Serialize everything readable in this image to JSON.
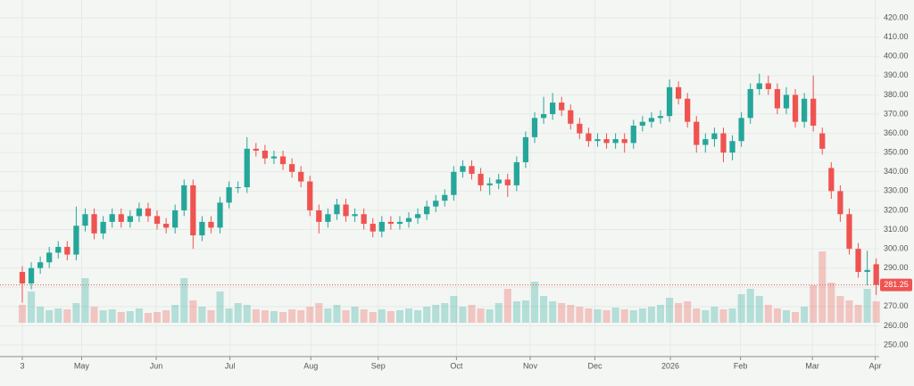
{
  "chart_data": {
    "type": "candlestick",
    "up_color": "#26a69a",
    "down_color": "#ef5350",
    "grid": true,
    "xlim": [
      -2.48,
      95.33
    ],
    "xticks": [
      {
        "value": 0,
        "label": "3"
      },
      {
        "value": 6.6,
        "label": "May"
      },
      {
        "value": 14.9,
        "label": "Jun"
      },
      {
        "value": 23.1,
        "label": "Jul"
      },
      {
        "value": 32.1,
        "label": "Aug"
      },
      {
        "value": 39.6,
        "label": "Sep"
      },
      {
        "value": 48.3,
        "label": "Oct"
      },
      {
        "value": 56.5,
        "label": "Nov"
      },
      {
        "value": 63.7,
        "label": "Dec"
      },
      {
        "value": 72.1,
        "label": "2026"
      },
      {
        "value": 79.9,
        "label": "Feb"
      },
      {
        "value": 87.9,
        "label": "Mar"
      },
      {
        "value": 94.9,
        "label": "Apr"
      }
    ],
    "ylim": [
      244,
      429.3
    ],
    "yticks": [
      {
        "value": 250,
        "label": "250.00"
      },
      {
        "value": 260,
        "label": "260.00"
      },
      {
        "value": 270,
        "label": "270.00"
      },
      {
        "value": 280,
        "label": "280.00"
      },
      {
        "value": 290,
        "label": "290.00"
      },
      {
        "value": 300,
        "label": "300.00"
      },
      {
        "value": 310,
        "label": "310.00"
      },
      {
        "value": 320,
        "label": "320.00"
      },
      {
        "value": 330,
        "label": "330.00"
      },
      {
        "value": 340,
        "label": "340.00"
      },
      {
        "value": 350,
        "label": "350.00"
      },
      {
        "value": 360,
        "label": "360.00"
      },
      {
        "value": 370,
        "label": "370.00"
      },
      {
        "value": 380,
        "label": "380.00"
      },
      {
        "value": 390,
        "label": "390.00"
      },
      {
        "value": 400,
        "label": "400.00"
      },
      {
        "value": 410,
        "label": "410.00"
      },
      {
        "value": 420,
        "label": "420.00"
      }
    ],
    "open": [
      288,
      282,
      290,
      293,
      298,
      301,
      297,
      312,
      318,
      308,
      314,
      318,
      314,
      317,
      321,
      317,
      313,
      311,
      320,
      333,
      307,
      314,
      311,
      324,
      332,
      332,
      352,
      351,
      347,
      348,
      344,
      340,
      335,
      320,
      314,
      318,
      323,
      317,
      318,
      313,
      309,
      314,
      313,
      314,
      316,
      318,
      322,
      325,
      328,
      340,
      343,
      339,
      333,
      334,
      336,
      333,
      345,
      358,
      368,
      370,
      376,
      372,
      365,
      360,
      356,
      357,
      355,
      357,
      355,
      364,
      366,
      368,
      369,
      384,
      378,
      366,
      354,
      357,
      360,
      350,
      356,
      368,
      383,
      386,
      383,
      373,
      380,
      366,
      378,
      360,
      342,
      330,
      318,
      300,
      288,
      292
    ],
    "high": [
      291,
      293,
      296,
      301,
      304,
      304,
      322,
      321,
      321,
      317,
      321,
      321,
      320,
      324,
      324,
      320,
      316,
      323,
      336,
      336,
      317,
      317,
      327,
      335,
      335,
      358,
      355,
      354,
      351,
      351,
      347,
      343,
      338,
      323,
      321,
      326,
      326,
      321,
      321,
      316,
      317,
      317,
      317,
      319,
      321,
      325,
      328,
      331,
      343,
      346,
      346,
      342,
      337,
      339,
      339,
      348,
      361,
      371,
      379,
      381,
      379,
      375,
      368,
      363,
      360,
      360,
      360,
      360,
      367,
      369,
      371,
      372,
      388,
      387,
      381,
      369,
      360,
      363,
      363,
      359,
      371,
      386,
      391,
      390,
      386,
      384,
      383,
      381,
      390,
      363,
      345,
      333,
      321,
      303,
      299,
      295
    ],
    "low": [
      272,
      279,
      287,
      290,
      295,
      294,
      294,
      309,
      305,
      305,
      311,
      311,
      311,
      314,
      314,
      310,
      308,
      308,
      317,
      300,
      304,
      308,
      308,
      321,
      329,
      329,
      348,
      344,
      344,
      341,
      337,
      332,
      317,
      308,
      311,
      315,
      314,
      314,
      310,
      306,
      306,
      310,
      310,
      311,
      313,
      315,
      319,
      322,
      325,
      337,
      336,
      330,
      328,
      331,
      327,
      330,
      342,
      355,
      365,
      367,
      369,
      362,
      357,
      353,
      353,
      352,
      352,
      350,
      352,
      361,
      363,
      365,
      366,
      375,
      363,
      350,
      350,
      353,
      345,
      346,
      353,
      365,
      380,
      380,
      370,
      370,
      363,
      363,
      361,
      349,
      326,
      314,
      297,
      285,
      281,
      276
    ],
    "close": [
      282,
      290,
      293,
      298,
      301,
      297,
      312,
      318,
      308,
      314,
      318,
      314,
      317,
      321,
      317,
      313,
      311,
      320,
      333,
      307,
      314,
      311,
      324,
      332,
      332,
      352,
      351,
      347,
      348,
      344,
      340,
      335,
      320,
      314,
      318,
      323,
      317,
      318,
      313,
      309,
      314,
      313,
      314,
      316,
      318,
      322,
      325,
      328,
      340,
      343,
      339,
      333,
      334,
      336,
      333,
      345,
      358,
      368,
      370,
      376,
      372,
      365,
      360,
      356,
      357,
      355,
      357,
      355,
      364,
      366,
      368,
      369,
      384,
      378,
      366,
      354,
      357,
      360,
      350,
      356,
      368,
      383,
      386,
      383,
      373,
      380,
      366,
      378,
      364,
      352,
      330,
      318,
      300,
      288,
      289,
      281.25
    ],
    "volume": [
      20,
      35,
      18,
      14,
      16,
      15,
      22,
      50,
      18,
      14,
      15,
      12,
      13,
      16,
      11,
      12,
      14,
      20,
      50,
      25,
      18,
      14,
      35,
      16,
      22,
      20,
      15,
      14,
      13,
      12,
      15,
      14,
      18,
      22,
      16,
      20,
      14,
      18,
      15,
      12,
      15,
      13,
      14,
      16,
      14,
      18,
      20,
      22,
      30,
      18,
      20,
      16,
      15,
      22,
      38,
      24,
      25,
      46,
      30,
      24,
      22,
      20,
      18,
      16,
      15,
      14,
      17,
      15,
      14,
      16,
      18,
      20,
      28,
      22,
      24,
      16,
      14,
      18,
      15,
      16,
      32,
      38,
      30,
      20,
      16,
      14,
      12,
      18,
      42,
      80,
      45,
      30,
      25,
      20,
      38,
      24
    ]
  }
}
